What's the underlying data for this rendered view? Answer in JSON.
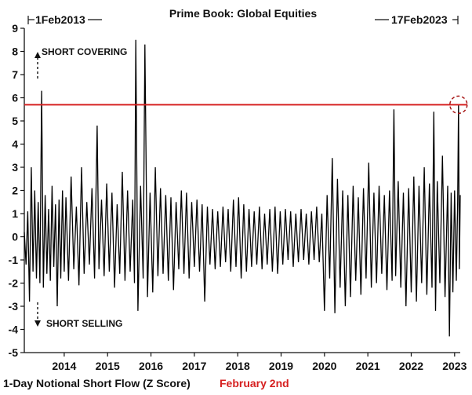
{
  "chart_data": {
    "type": "line",
    "title": "Prime Book: Global Equities",
    "range_start_label": "1Feb2013",
    "range_end_label": "17Feb2023",
    "xlabel": "1-Day Notional Short Flow (Z Score)",
    "highlight_label": "February 2nd",
    "x_range": [
      2013.08,
      2023.13
    ],
    "ylim": [
      -5,
      9
    ],
    "y_ticks": [
      -5,
      -4,
      -3,
      -2,
      -1,
      0,
      1,
      2,
      3,
      4,
      5,
      6,
      7,
      8,
      9
    ],
    "x_ticks": [
      "2014",
      "2015",
      "2016",
      "2017",
      "2018",
      "2019",
      "2020",
      "2021",
      "2022",
      "2023"
    ],
    "reference_line": {
      "y": 5.7,
      "color": "#d62020"
    },
    "highlight_point": {
      "x": 2023.09,
      "y": 5.7
    },
    "annotations": {
      "top": "SHORT COVERING",
      "bottom": "SHORT SELLING"
    },
    "series": [
      {
        "values": [
          [
            2013.08,
            0.2
          ],
          [
            2013.12,
            -1.2
          ],
          [
            2013.16,
            1.1
          ],
          [
            2013.2,
            -2.8
          ],
          [
            2013.24,
            3.0
          ],
          [
            2013.28,
            -1.5
          ],
          [
            2013.32,
            2.0
          ],
          [
            2013.36,
            -1.8
          ],
          [
            2013.4,
            1.5
          ],
          [
            2013.44,
            -2.0
          ],
          [
            2013.48,
            6.3
          ],
          [
            2013.52,
            -2.2
          ],
          [
            2013.56,
            1.8
          ],
          [
            2013.6,
            -1.6
          ],
          [
            2013.64,
            1.2
          ],
          [
            2013.68,
            -1.9
          ],
          [
            2013.72,
            2.2
          ],
          [
            2013.76,
            -1.3
          ],
          [
            2013.8,
            1.4
          ],
          [
            2013.84,
            -3.0
          ],
          [
            2013.88,
            1.6
          ],
          [
            2013.92,
            -1.8
          ],
          [
            2013.96,
            2.0
          ],
          [
            2014.0,
            -1.5
          ],
          [
            2014.04,
            1.7
          ],
          [
            2014.1,
            -1.9
          ],
          [
            2014.16,
            2.6
          ],
          [
            2014.22,
            -1.4
          ],
          [
            2014.28,
            1.3
          ],
          [
            2014.34,
            -2.1
          ],
          [
            2014.4,
            3.0
          ],
          [
            2014.46,
            -1.6
          ],
          [
            2014.52,
            1.5
          ],
          [
            2014.58,
            -1.2
          ],
          [
            2014.64,
            2.1
          ],
          [
            2014.7,
            -1.8
          ],
          [
            2014.76,
            4.8
          ],
          [
            2014.8,
            -1.4
          ],
          [
            2014.86,
            1.6
          ],
          [
            2014.92,
            -1.7
          ],
          [
            2014.98,
            2.3
          ],
          [
            2015.04,
            -1.5
          ],
          [
            2015.1,
            1.9
          ],
          [
            2015.16,
            -2.2
          ],
          [
            2015.22,
            1.4
          ],
          [
            2015.28,
            -1.6
          ],
          [
            2015.34,
            2.8
          ],
          [
            2015.4,
            -1.9
          ],
          [
            2015.46,
            2.0
          ],
          [
            2015.52,
            -1.5
          ],
          [
            2015.58,
            1.6
          ],
          [
            2015.62,
            -2.0
          ],
          [
            2015.65,
            8.5
          ],
          [
            2015.7,
            -3.2
          ],
          [
            2015.76,
            2.2
          ],
          [
            2015.82,
            -1.8
          ],
          [
            2015.86,
            8.3
          ],
          [
            2015.92,
            -2.6
          ],
          [
            2015.98,
            1.9
          ],
          [
            2016.04,
            -2.4
          ],
          [
            2016.1,
            3.0
          ],
          [
            2016.16,
            -1.7
          ],
          [
            2016.22,
            2.1
          ],
          [
            2016.28,
            -1.6
          ],
          [
            2016.34,
            1.8
          ],
          [
            2016.4,
            -1.9
          ],
          [
            2016.46,
            1.7
          ],
          [
            2016.52,
            -2.3
          ],
          [
            2016.58,
            1.5
          ],
          [
            2016.64,
            -1.4
          ],
          [
            2016.7,
            2.0
          ],
          [
            2016.76,
            -1.6
          ],
          [
            2016.82,
            1.9
          ],
          [
            2016.88,
            -1.8
          ],
          [
            2016.94,
            1.5
          ],
          [
            2017.0,
            -1.3
          ],
          [
            2017.06,
            1.6
          ],
          [
            2017.12,
            -1.5
          ],
          [
            2017.18,
            1.4
          ],
          [
            2017.24,
            -2.8
          ],
          [
            2017.3,
            1.3
          ],
          [
            2017.36,
            -1.2
          ],
          [
            2017.42,
            1.2
          ],
          [
            2017.48,
            -1.4
          ],
          [
            2017.54,
            1.1
          ],
          [
            2017.6,
            -1.3
          ],
          [
            2017.66,
            1.3
          ],
          [
            2017.72,
            -1.1
          ],
          [
            2017.78,
            1.2
          ],
          [
            2017.84,
            -1.5
          ],
          [
            2017.9,
            1.6
          ],
          [
            2017.96,
            -1.3
          ],
          [
            2018.02,
            1.7
          ],
          [
            2018.08,
            -1.8
          ],
          [
            2018.14,
            1.4
          ],
          [
            2018.2,
            -1.5
          ],
          [
            2018.26,
            1.2
          ],
          [
            2018.32,
            -1.3
          ],
          [
            2018.38,
            1.1
          ],
          [
            2018.44,
            -1.2
          ],
          [
            2018.5,
            1.3
          ],
          [
            2018.56,
            -1.4
          ],
          [
            2018.62,
            1.0
          ],
          [
            2018.68,
            -1.2
          ],
          [
            2018.74,
            1.2
          ],
          [
            2018.8,
            -1.5
          ],
          [
            2018.86,
            1.3
          ],
          [
            2018.92,
            -1.6
          ],
          [
            2018.98,
            1.1
          ],
          [
            2019.04,
            -1.2
          ],
          [
            2019.1,
            1.2
          ],
          [
            2019.16,
            -1.0
          ],
          [
            2019.22,
            1.1
          ],
          [
            2019.28,
            -1.3
          ],
          [
            2019.34,
            1.0
          ],
          [
            2019.4,
            -1.1
          ],
          [
            2019.46,
            1.2
          ],
          [
            2019.52,
            -1.0
          ],
          [
            2019.58,
            1.0
          ],
          [
            2019.64,
            -1.2
          ],
          [
            2019.7,
            1.1
          ],
          [
            2019.76,
            -1.0
          ],
          [
            2019.82,
            1.3
          ],
          [
            2019.88,
            -1.1
          ],
          [
            2019.94,
            1.0
          ],
          [
            2020.0,
            -3.2
          ],
          [
            2020.06,
            1.8
          ],
          [
            2020.12,
            -1.8
          ],
          [
            2020.18,
            3.4
          ],
          [
            2020.24,
            -3.3
          ],
          [
            2020.3,
            2.5
          ],
          [
            2020.36,
            -2.2
          ],
          [
            2020.42,
            2.0
          ],
          [
            2020.48,
            -3.0
          ],
          [
            2020.54,
            1.8
          ],
          [
            2020.6,
            -2.6
          ],
          [
            2020.66,
            2.2
          ],
          [
            2020.72,
            -1.9
          ],
          [
            2020.78,
            1.7
          ],
          [
            2020.84,
            -2.5
          ],
          [
            2020.9,
            2.1
          ],
          [
            2020.96,
            -1.8
          ],
          [
            2021.02,
            3.2
          ],
          [
            2021.08,
            -2.2
          ],
          [
            2021.14,
            1.9
          ],
          [
            2021.2,
            -2.0
          ],
          [
            2021.26,
            2.2
          ],
          [
            2021.32,
            -1.6
          ],
          [
            2021.38,
            1.8
          ],
          [
            2021.44,
            -2.3
          ],
          [
            2021.5,
            2.0
          ],
          [
            2021.56,
            -1.9
          ],
          [
            2021.6,
            5.5
          ],
          [
            2021.64,
            -1.7
          ],
          [
            2021.7,
            2.4
          ],
          [
            2021.76,
            -2.2
          ],
          [
            2021.82,
            1.9
          ],
          [
            2021.88,
            -3.0
          ],
          [
            2021.94,
            2.1
          ],
          [
            2022.0,
            -2.4
          ],
          [
            2022.06,
            2.6
          ],
          [
            2022.12,
            -2.8
          ],
          [
            2022.18,
            2.2
          ],
          [
            2022.24,
            -2.0
          ],
          [
            2022.3,
            3.0
          ],
          [
            2022.36,
            -2.5
          ],
          [
            2022.42,
            2.3
          ],
          [
            2022.48,
            -2.2
          ],
          [
            2022.52,
            5.4
          ],
          [
            2022.56,
            -3.2
          ],
          [
            2022.6,
            2.4
          ],
          [
            2022.66,
            -2.0
          ],
          [
            2022.72,
            3.5
          ],
          [
            2022.78,
            -2.6
          ],
          [
            2022.84,
            2.2
          ],
          [
            2022.88,
            -4.3
          ],
          [
            2022.92,
            1.9
          ],
          [
            2022.96,
            -2.4
          ],
          [
            2023.0,
            2.0
          ],
          [
            2023.04,
            -1.9
          ],
          [
            2023.07,
            1.5
          ],
          [
            2023.09,
            5.7
          ],
          [
            2023.11,
            -1.4
          ],
          [
            2023.13,
            1.8
          ]
        ]
      }
    ]
  }
}
